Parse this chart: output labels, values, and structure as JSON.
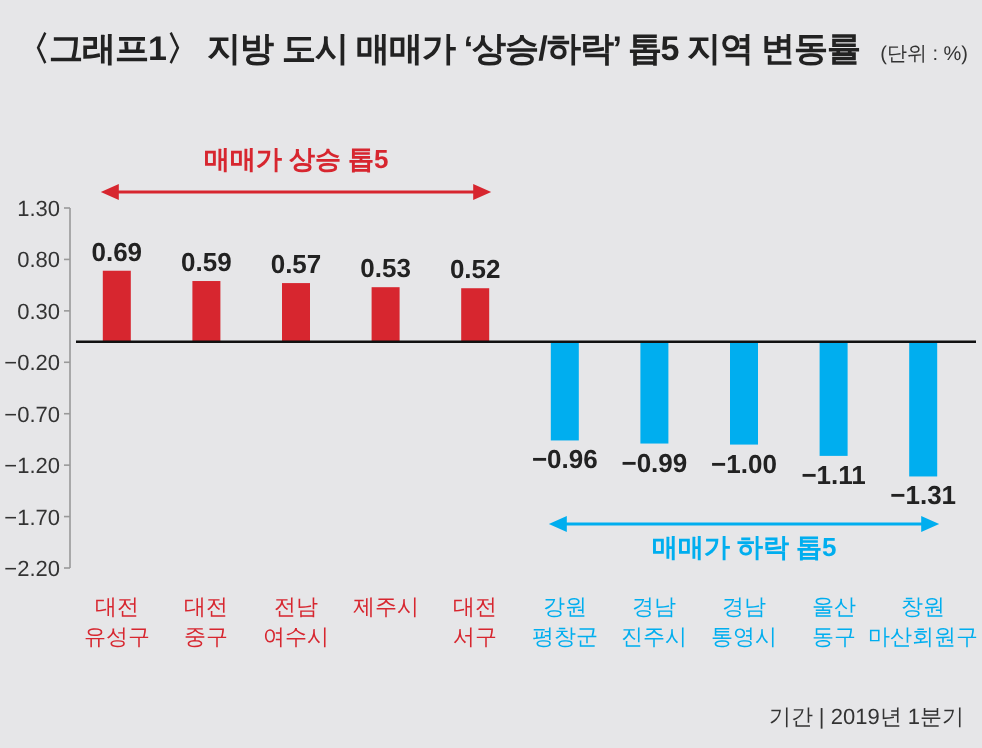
{
  "chart_data": {
    "type": "bar",
    "title": "〈그래프1〉 지방 도시 매매가 ‘상승/하락’ 톱5 지역 변동률",
    "categories": [
      "대전 유성구",
      "대전 중구",
      "전남 여수시",
      "제주시",
      "대전 서구",
      "강원 평창군",
      "경남 진주시",
      "경남 통영시",
      "울산 동구",
      "창원 마산회원구"
    ],
    "values": [
      0.69,
      0.59,
      0.57,
      0.53,
      0.52,
      -0.96,
      -0.99,
      -1.0,
      -1.11,
      -1.31
    ],
    "value_labels": [
      "0.69",
      "0.59",
      "0.57",
      "0.53",
      "0.52",
      "−0.96",
      "−0.99",
      "−1.00",
      "−1.11",
      "−1.31"
    ],
    "colors": [
      "#d7262f",
      "#d7262f",
      "#d7262f",
      "#d7262f",
      "#d7262f",
      "#00aeef",
      "#00aeef",
      "#00aeef",
      "#00aeef",
      "#00aeef"
    ],
    "ylim": [
      -2.2,
      1.3
    ],
    "yticks": [
      {
        "value": 1.3,
        "label": "1.30"
      },
      {
        "value": 0.8,
        "label": "0.80"
      },
      {
        "value": 0.3,
        "label": "0.30"
      },
      {
        "value": -0.2,
        "label": "−0.20"
      },
      {
        "value": -0.7,
        "label": "−0.70"
      },
      {
        "value": -1.2,
        "label": "−1.20"
      },
      {
        "value": -1.7,
        "label": "−1.70"
      },
      {
        "value": -2.2,
        "label": "−2.20"
      }
    ],
    "annotations": [
      "매매가 상승 톱5",
      "매매가 하락 톱5",
      "기간 | 2019년 1분기",
      "(단위 : %)"
    ]
  }
}
